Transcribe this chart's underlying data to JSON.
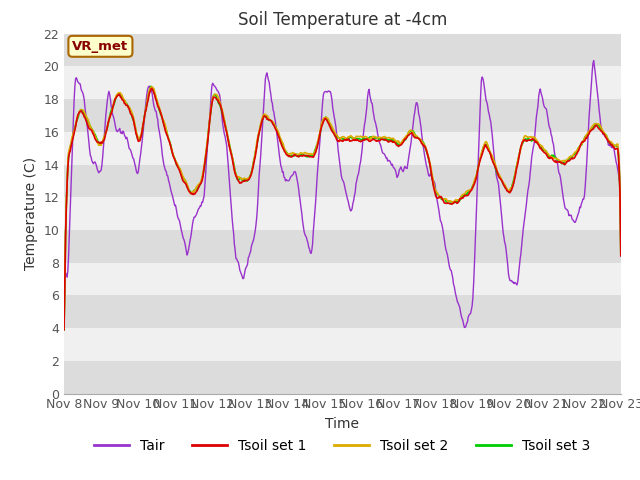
{
  "title": "Soil Temperature at -4cm",
  "xlabel": "Time",
  "ylabel": "Temperature (C)",
  "ylim": [
    0,
    22
  ],
  "yticks": [
    0,
    2,
    4,
    6,
    8,
    10,
    12,
    14,
    16,
    18,
    20,
    22
  ],
  "xlim_days": [
    0,
    15
  ],
  "xtick_labels": [
    "Nov 8",
    "Nov 9",
    "Nov 10",
    "Nov 11",
    "Nov 12",
    "Nov 13",
    "Nov 14",
    "Nov 15",
    "Nov 16",
    "Nov 17",
    "Nov 18",
    "Nov 19",
    "Nov 20",
    "Nov 21",
    "Nov 22",
    "Nov 23"
  ],
  "colors": {
    "Tair": "#9933cc",
    "Tsoil1": "#dd0000",
    "Tsoil2": "#ddaa00",
    "Tsoil3": "#00cc00",
    "fig_bg": "#ffffff",
    "plot_bg_dark": "#dcdcdc",
    "plot_bg_light": "#f0f0f0",
    "grid": "#ffffff",
    "annotation_bg": "#ffffcc",
    "annotation_border": "#aa6600",
    "annotation_text": "#880000"
  },
  "annotation_text": "VR_met",
  "legend_labels": [
    "Tair",
    "Tsoil set 1",
    "Tsoil set 2",
    "Tsoil set 3"
  ],
  "title_fontsize": 12,
  "axis_fontsize": 10,
  "tick_fontsize": 9,
  "legend_fontsize": 10
}
